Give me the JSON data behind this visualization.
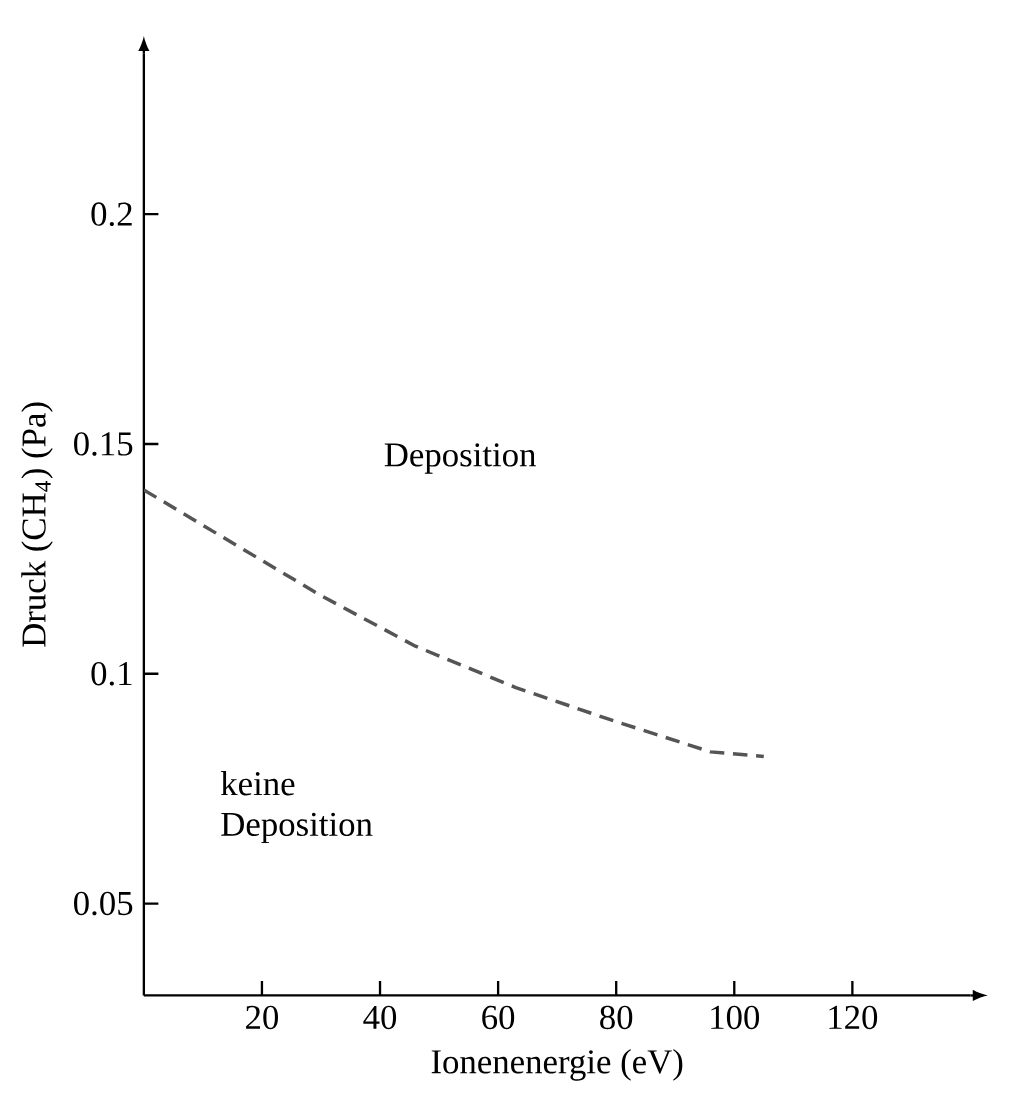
{
  "chart_data": {
    "type": "line",
    "xlabel": "Ionenenergie (eV)",
    "ylabel": "Druck (CH$_{4}$) (Pa)",
    "x": [
      0,
      13,
      30,
      46,
      63,
      79,
      96,
      105
    ],
    "series": [
      {
        "color": "#555555",
        "line_style": "dashed",
        "values": [
          0.14,
          0.13,
          0.117,
          0.106,
          0.097,
          0.09,
          0.083,
          0.082
        ]
      }
    ],
    "xlim": [
      0,
      140
    ],
    "ylim": [
      0.03,
      0.235
    ],
    "xticks": [
      20,
      40,
      60,
      80,
      100,
      120
    ],
    "yticks": [
      0.05,
      0.1,
      0.15,
      0.2
    ],
    "grid": false,
    "marker": "none",
    "annotations": [
      "Deposition",
      "keine Deposition"
    ]
  }
}
